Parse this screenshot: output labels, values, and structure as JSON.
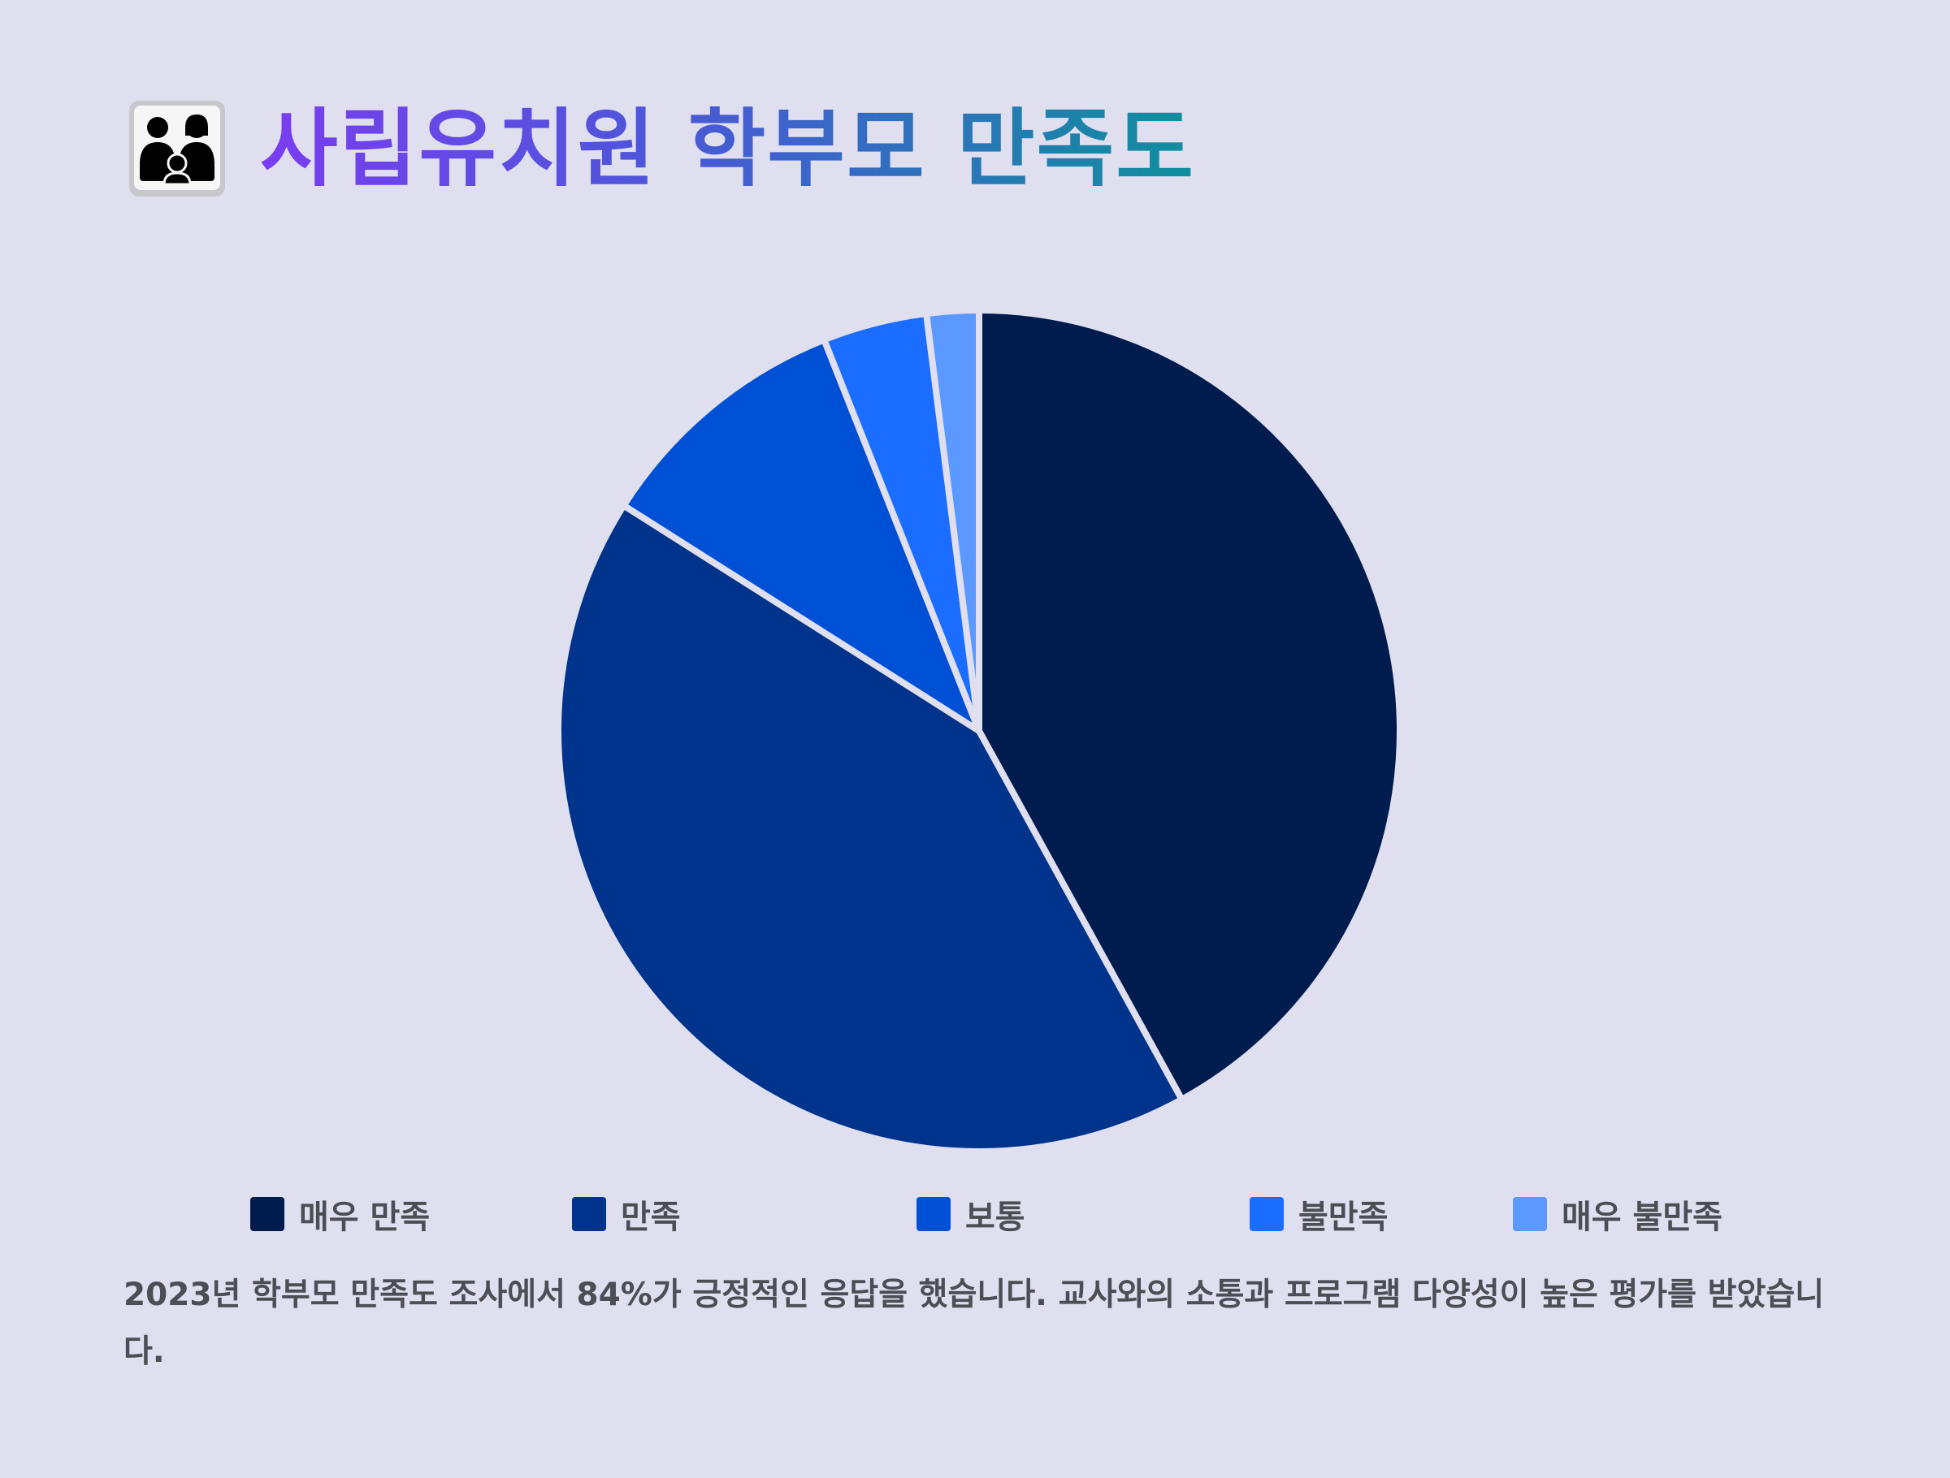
{
  "header": {
    "title": "사립유치원 학부모 만족도",
    "icon": "family-icon"
  },
  "chart_data": {
    "type": "pie",
    "title": "사립유치원 학부모 만족도",
    "categories": [
      "매우 만족",
      "만족",
      "보통",
      "불만족",
      "매우 불만족"
    ],
    "values": [
      42,
      42,
      10,
      4,
      2
    ],
    "colors": [
      "#001c4e",
      "#00338c",
      "#0050d6",
      "#1a6dff",
      "#5b98ff"
    ],
    "separator_color": "#e0dfef",
    "start_angle": "12 o'clock",
    "direction": "clockwise",
    "legend_position": "bottom"
  },
  "caption": {
    "text": "2023년 학부모 만족도 조사에서 84%가 긍정적인 응답을 했습니다. 교사와의 소통과 프로그램 다양성이 높은 평가를 받았습니다."
  }
}
